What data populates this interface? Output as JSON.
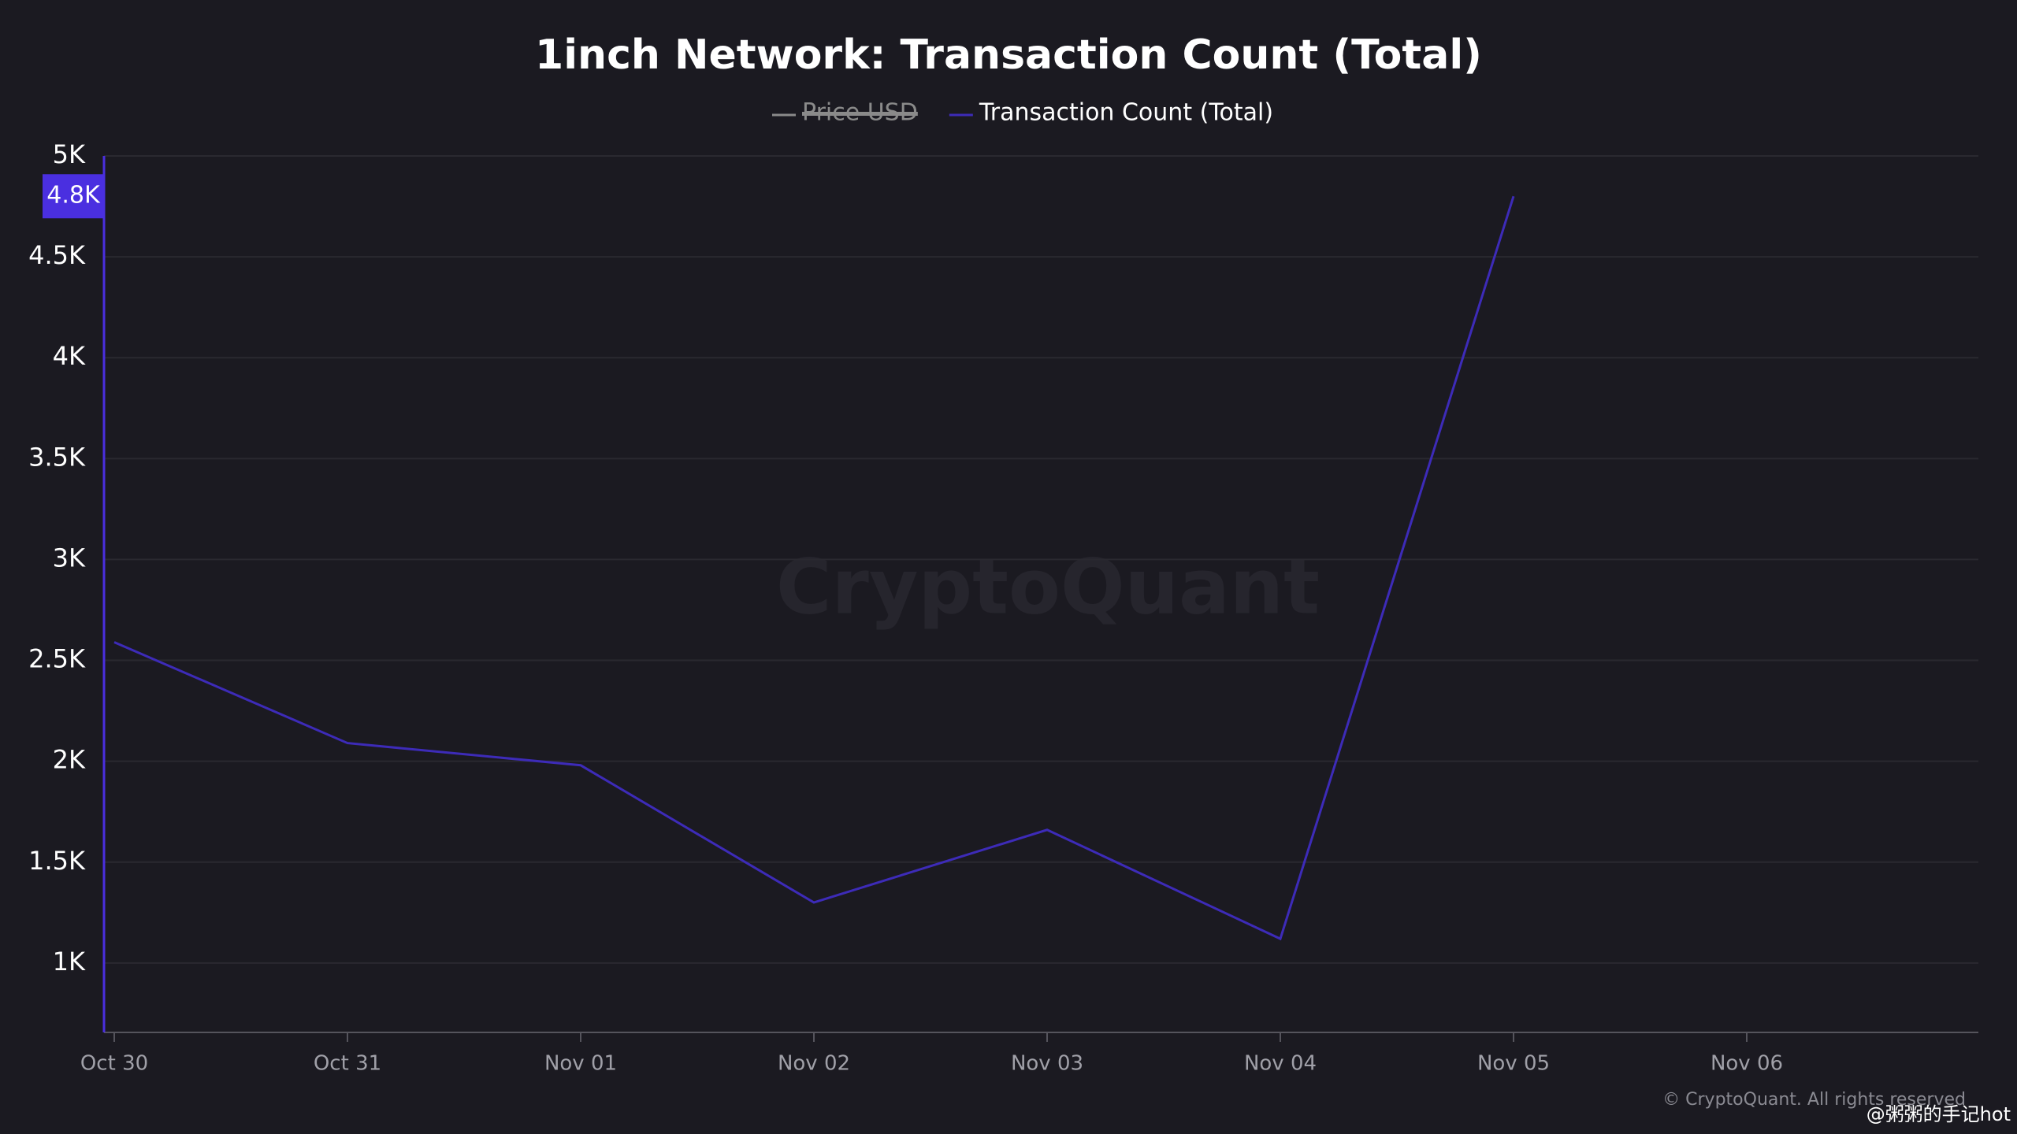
{
  "chart_data": {
    "type": "line",
    "title": "1inch Network: Transaction Count (Total)",
    "categories": [
      "Oct 30",
      "Oct 31",
      "Nov 01",
      "Nov 02",
      "Nov 03",
      "Nov 04",
      "Nov 05",
      "Nov 06"
    ],
    "series": [
      {
        "name": "Price USD",
        "color": "#8a8a8a",
        "hidden": true
      },
      {
        "name": "Transaction Count (Total)",
        "color": "#3d2bb8",
        "values": [
          2590,
          2090,
          1980,
          1300,
          1660,
          1120,
          4800,
          null
        ],
        "value_labels": [
          null,
          null,
          null,
          null,
          null,
          null,
          "4.8K",
          null
        ]
      }
    ],
    "ylim": [
      656,
      5000
    ],
    "yticks": [
      {
        "value": 1000,
        "label": "1K"
      },
      {
        "value": 1500,
        "label": "1.5K"
      },
      {
        "value": 2000,
        "label": "2K"
      },
      {
        "value": 2500,
        "label": "2.5K"
      },
      {
        "value": 3000,
        "label": "3K"
      },
      {
        "value": 3500,
        "label": "3.5K"
      },
      {
        "value": 4000,
        "label": "4K"
      },
      {
        "value": 4500,
        "label": "4.5K"
      },
      {
        "value": 5000,
        "label": "5K"
      }
    ],
    "grid": true,
    "watermark": "CryptoQuant",
    "copyright": "© CryptoQuant. All rights reserved",
    "credit": "@粥粥的手记hot"
  }
}
